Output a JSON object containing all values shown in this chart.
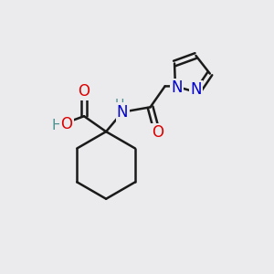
{
  "bg_color": "#ebebed",
  "bond_color": "#1a1a1a",
  "bond_width": 1.8,
  "atom_colors": {
    "C": "#1a1a1a",
    "O": "#dd0000",
    "N": "#0000cc",
    "H": "#4a9090"
  },
  "font_size": 11,
  "fig_size": [
    3.0,
    3.0
  ],
  "dpi": 100
}
